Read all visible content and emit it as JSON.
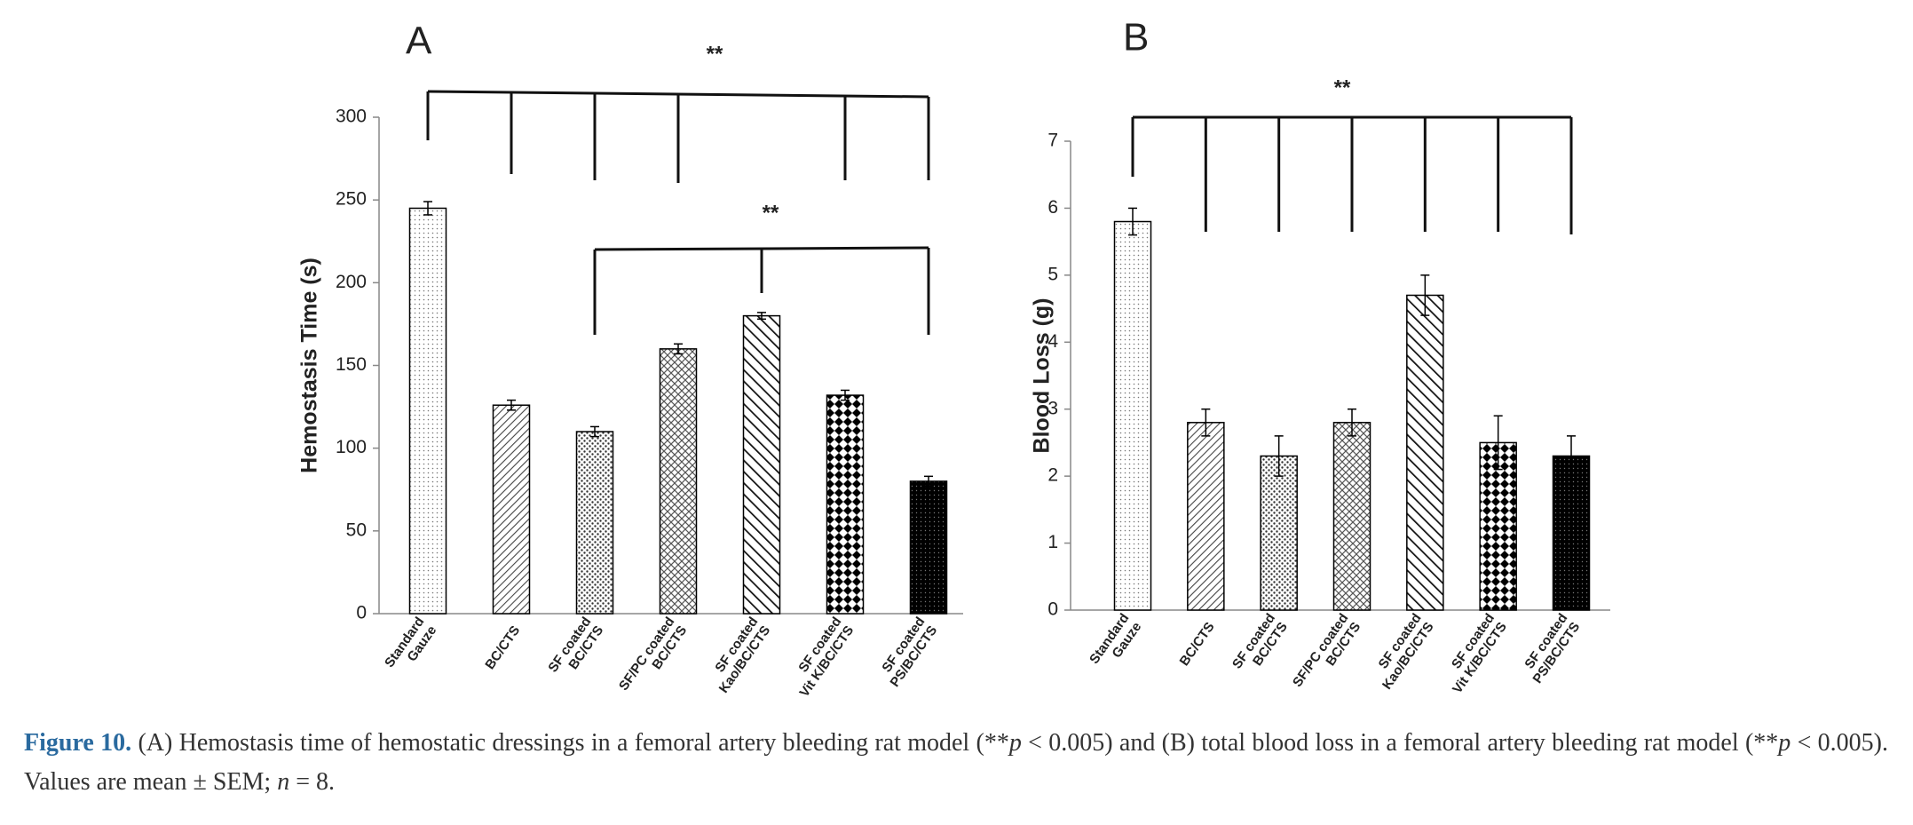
{
  "chart_data": [
    {
      "type": "bar",
      "panel": "A",
      "y_label": "Hemostasis Time (s)",
      "categories": [
        [
          "Standard",
          "Gauze"
        ],
        [
          "BC/CTS"
        ],
        [
          "SF coated",
          "BC/CTS"
        ],
        [
          "SF/PC coated",
          "BC/CTS"
        ],
        [
          "SF coated",
          "Kao/BC/CTS"
        ],
        [
          "SF coated",
          "Vit K/BC/CTS"
        ],
        [
          "SF coated",
          "PS/BC/CTS"
        ]
      ],
      "values": [
        245,
        126,
        110,
        160,
        180,
        132,
        80
      ],
      "errors": [
        4,
        3,
        3,
        3,
        2,
        3,
        3
      ],
      "color": "#000000",
      "ylim": [
        0,
        300
      ],
      "yticks": [
        0,
        50,
        100,
        150,
        200,
        250,
        300
      ],
      "annotations": [
        "**",
        "**"
      ]
    },
    {
      "type": "bar",
      "panel": "B",
      "y_label": "Blood Loss (g)",
      "categories": [
        [
          "Standard",
          "Gauze"
        ],
        [
          "BC/CTS"
        ],
        [
          "SF coated",
          "BC/CTS"
        ],
        [
          "SF/PC coated",
          "BC/CTS"
        ],
        [
          "SF coated",
          "Kao/BC/CTS"
        ],
        [
          "SF coated",
          "Vit K/BC/CTS"
        ],
        [
          "SF coated",
          "PS/BC/CTS"
        ]
      ],
      "values": [
        5.8,
        2.8,
        2.3,
        2.8,
        4.7,
        2.5,
        2.3
      ],
      "errors": [
        0.2,
        0.2,
        0.3,
        0.2,
        0.3,
        0.4,
        0.3
      ],
      "color": "#000000",
      "ylim": [
        0,
        7
      ],
      "yticks": [
        0,
        1,
        2,
        3,
        4,
        5,
        6,
        7
      ],
      "annotations": [
        "**"
      ]
    }
  ],
  "caption": {
    "label": "Figure 10.",
    "segments": [
      "(A) Hemostasis time of hemostatic dressings in a femoral artery bleeding rat model (**",
      "p",
      " < 0.005) and (B) total blood loss in a femoral artery bleeding rat model (**",
      "p",
      " < 0.005). Values are mean ± SEM; ",
      "n",
      " = 8."
    ]
  }
}
